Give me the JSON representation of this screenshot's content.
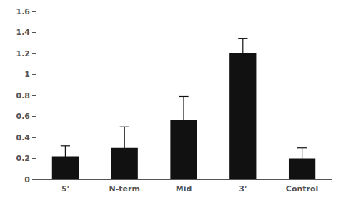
{
  "chart_data": {
    "type": "bar",
    "categories": [
      "5'",
      "N-term",
      "Mid",
      "3'",
      "Control"
    ],
    "values": [
      0.22,
      0.3,
      0.57,
      1.2,
      0.2
    ],
    "errors": [
      0.1,
      0.2,
      0.22,
      0.14,
      0.1
    ],
    "color": "#111111",
    "ylim": [
      0,
      1.6
    ],
    "yticks": [
      0,
      0.2,
      0.4,
      0.6,
      0.8,
      1,
      1.2,
      1.4,
      1.6
    ],
    "grid": false
  }
}
